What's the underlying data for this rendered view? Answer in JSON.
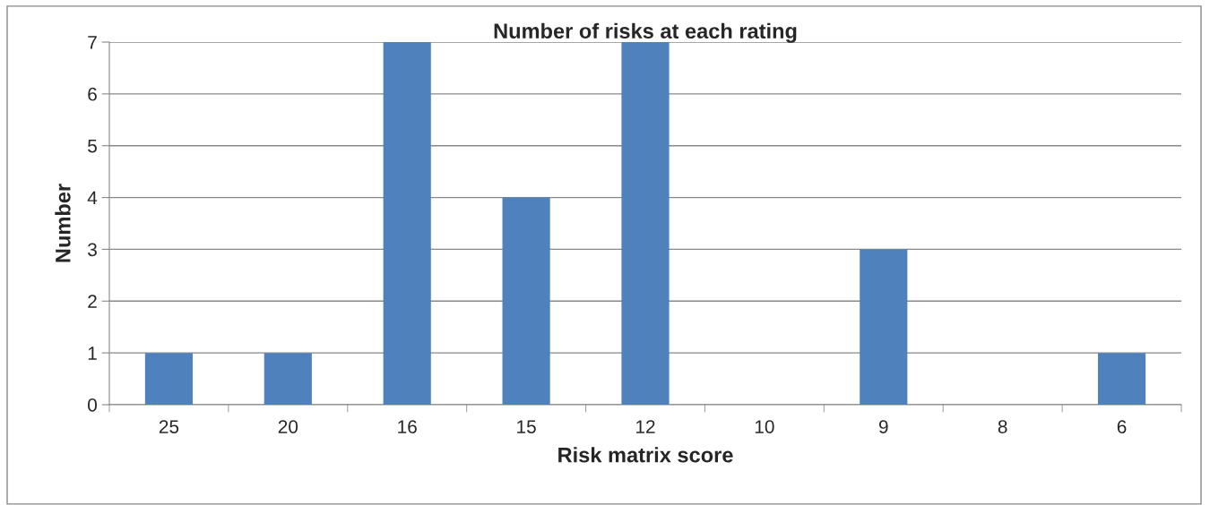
{
  "chart_data": {
    "type": "bar",
    "title": "Number of risks at each rating",
    "xlabel": "Risk matrix score",
    "ylabel": "Number",
    "categories": [
      "25",
      "20",
      "16",
      "15",
      "12",
      "10",
      "9",
      "8",
      "6"
    ],
    "values": [
      1,
      1,
      7,
      4,
      7,
      0,
      3,
      0,
      1
    ],
    "color": "#4f81bd",
    "ylim": [
      0,
      7
    ],
    "yticks": [
      0,
      1,
      2,
      3,
      4,
      5,
      6,
      7
    ],
    "grid": "y",
    "legend": false
  }
}
